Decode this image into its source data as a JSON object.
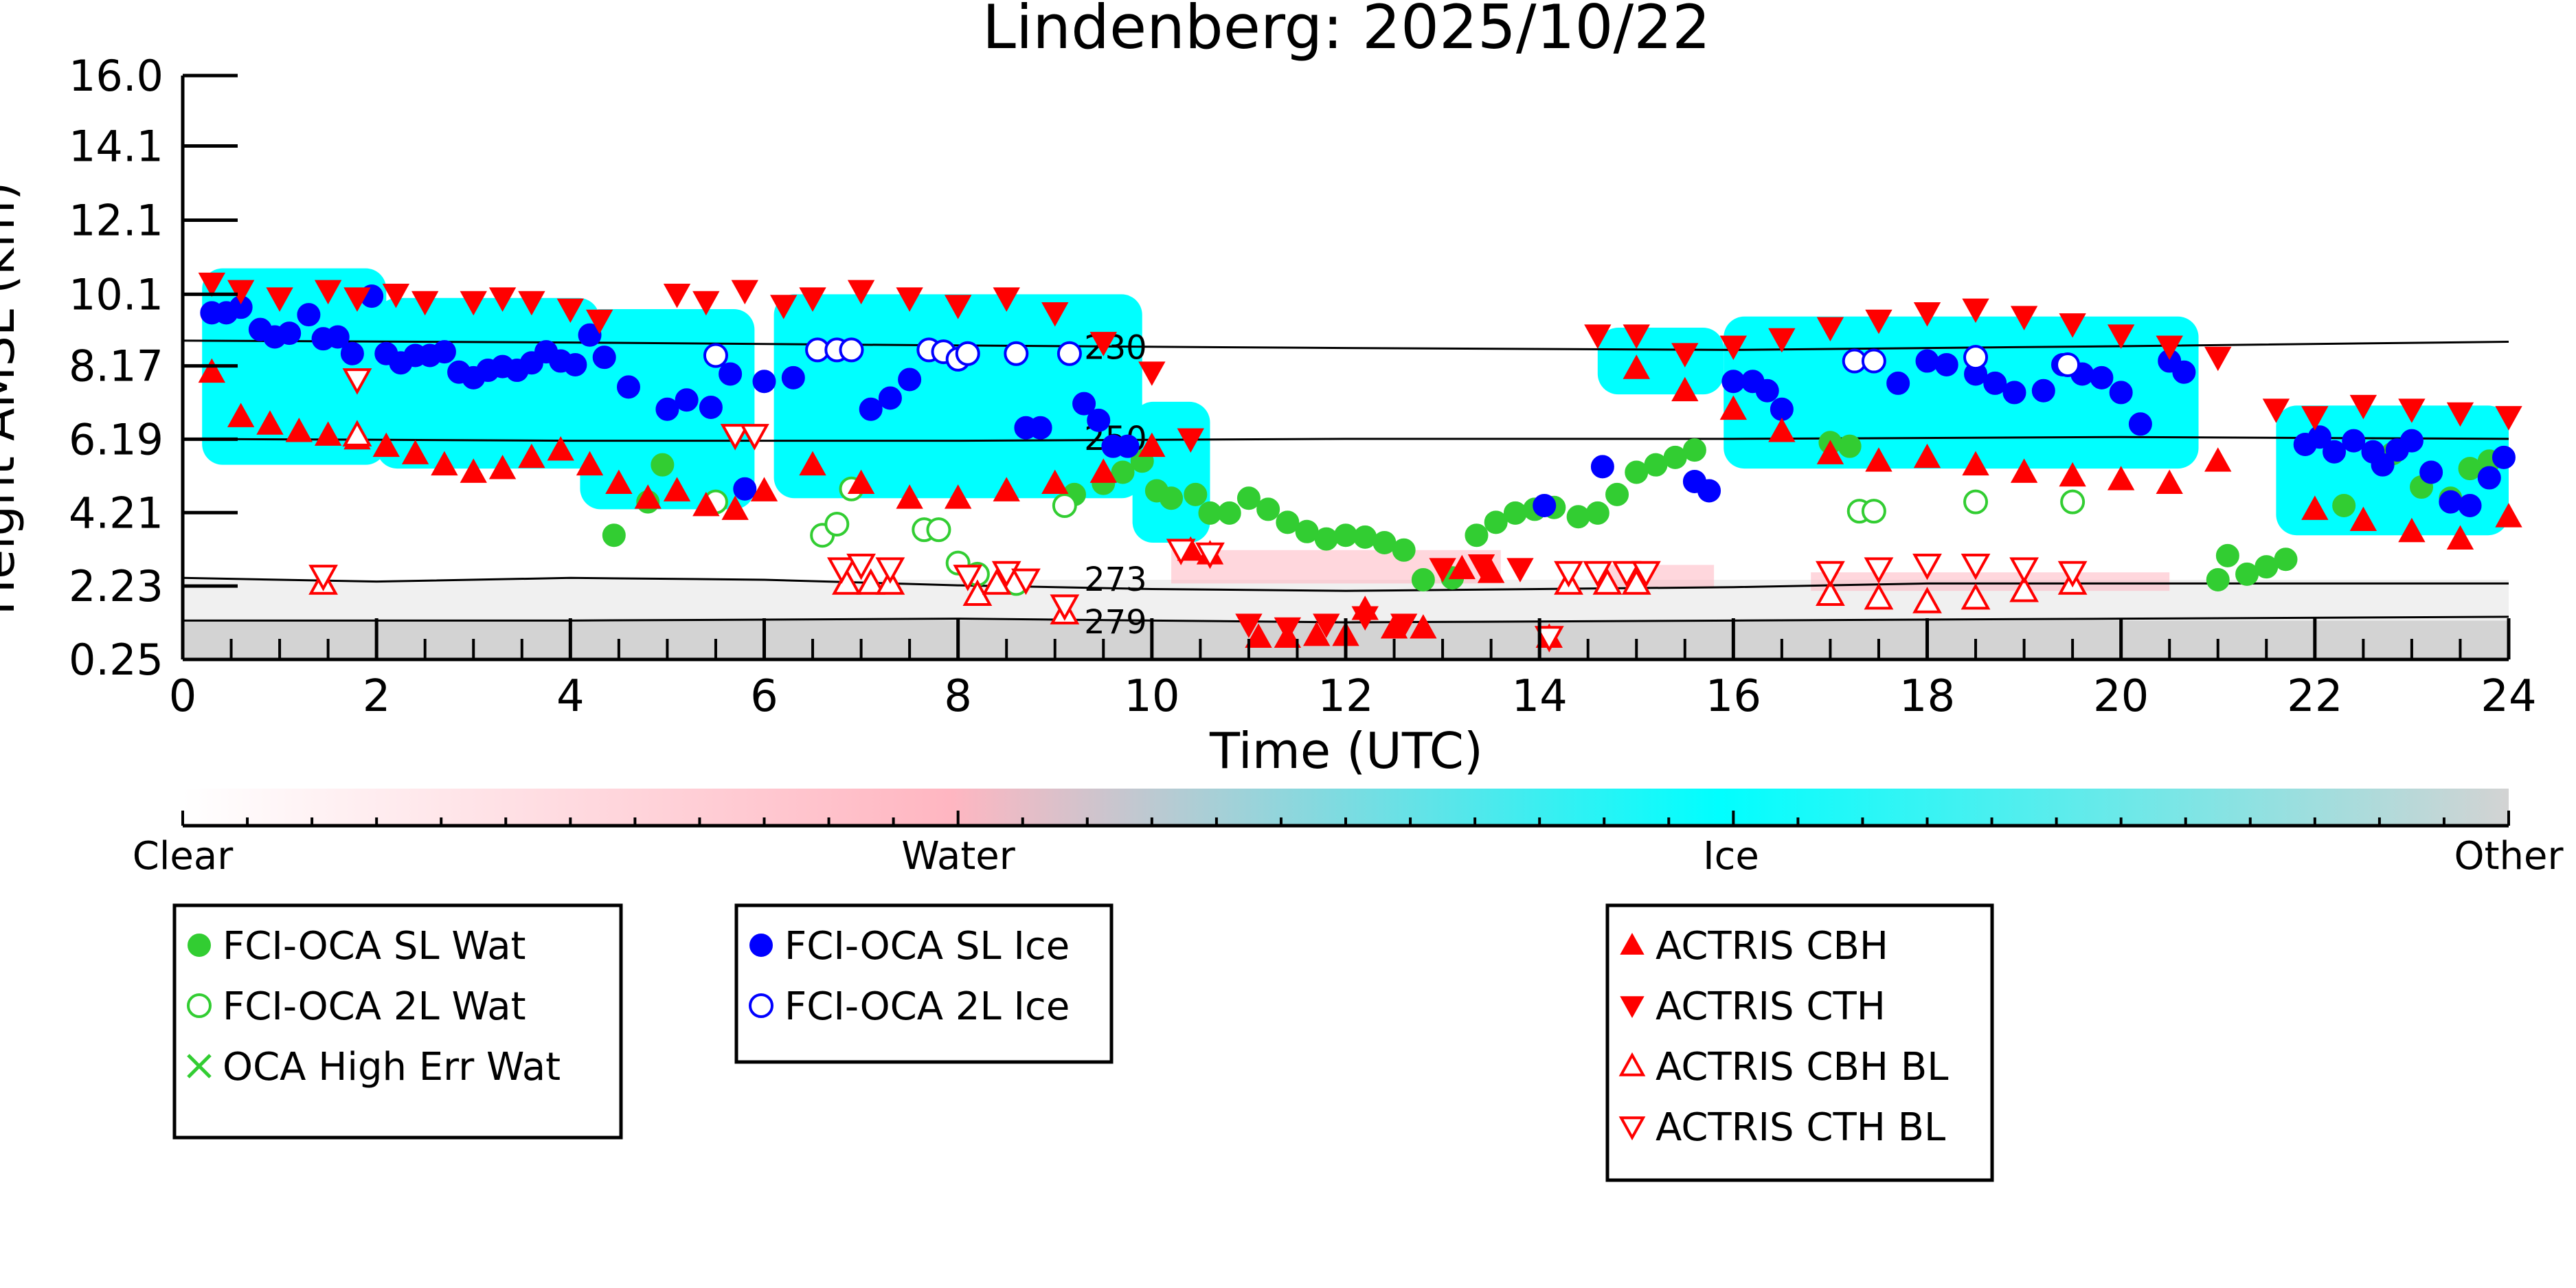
{
  "chart_data": {
    "type": "scatter",
    "title": "Lindenberg: 2025/10/22",
    "xlabel": "Time (UTC)",
    "ylabel": "Height AMSL (km)",
    "xlim": [
      0,
      24
    ],
    "ylim": [
      0.25,
      16.0
    ],
    "x_ticks": [
      "0",
      "2",
      "4",
      "6",
      "8",
      "10",
      "12",
      "14",
      "16",
      "18",
      "20",
      "22",
      "24"
    ],
    "y_ticks": [
      "0.25",
      "2.23",
      "4.21",
      "6.19",
      "8.17",
      "10.1",
      "12.1",
      "14.1",
      "16.0"
    ],
    "grid": false,
    "colorbar": {
      "labels": [
        "Clear",
        "Water",
        "Ice",
        "Other"
      ],
      "colors": [
        "#ffffff",
        "#ffb6c1",
        "#00ffff",
        "#d3d3d3"
      ]
    },
    "isotherms": [
      {
        "label": "230",
        "points": [
          [
            0,
            8.85
          ],
          [
            4,
            8.8
          ],
          [
            8,
            8.72
          ],
          [
            12,
            8.65
          ],
          [
            16,
            8.6
          ],
          [
            20,
            8.7
          ],
          [
            24,
            8.82
          ]
        ]
      },
      {
        "label": "250",
        "points": [
          [
            0,
            6.2
          ],
          [
            4,
            6.15
          ],
          [
            8,
            6.15
          ],
          [
            12,
            6.2
          ],
          [
            16,
            6.2
          ],
          [
            20,
            6.25
          ],
          [
            24,
            6.2
          ]
        ]
      },
      {
        "label": "273",
        "points": [
          [
            0,
            2.45
          ],
          [
            2,
            2.35
          ],
          [
            4,
            2.45
          ],
          [
            6,
            2.4
          ],
          [
            8,
            2.25
          ],
          [
            10,
            2.15
          ],
          [
            12,
            2.1
          ],
          [
            14,
            2.15
          ],
          [
            16,
            2.2
          ],
          [
            18,
            2.3
          ],
          [
            20,
            2.3
          ],
          [
            24,
            2.3
          ]
        ]
      },
      {
        "label": "279",
        "points": [
          [
            0,
            1.3
          ],
          [
            4,
            1.3
          ],
          [
            8,
            1.35
          ],
          [
            12,
            1.25
          ],
          [
            16,
            1.3
          ],
          [
            20,
            1.35
          ],
          [
            24,
            1.4
          ]
        ]
      }
    ],
    "legends": [
      {
        "entries": [
          {
            "label": "FCI-OCA SL Wat",
            "marker": "circle",
            "color": "#32cd32",
            "filled": true
          },
          {
            "label": "FCI-OCA 2L Wat",
            "marker": "circle",
            "color": "#32cd32",
            "filled": false
          },
          {
            "label": "OCA High Err Wat",
            "marker": "x",
            "color": "#32cd32",
            "filled": false
          }
        ]
      },
      {
        "entries": [
          {
            "label": "FCI-OCA SL Ice",
            "marker": "circle",
            "color": "#0000ff",
            "filled": true
          },
          {
            "label": "FCI-OCA 2L Ice",
            "marker": "circle",
            "color": "#0000ff",
            "filled": false
          }
        ]
      },
      {
        "entries": [
          {
            "label": "ACTRIS CBH",
            "marker": "triangle-up",
            "color": "#ff0000",
            "filled": true
          },
          {
            "label": "ACTRIS CTH",
            "marker": "triangle-down",
            "color": "#ff0000",
            "filled": true
          },
          {
            "label": "ACTRIS CBH BL",
            "marker": "triangle-up",
            "color": "#ff0000",
            "filled": false
          },
          {
            "label": "ACTRIS CTH BL",
            "marker": "triangle-down",
            "color": "#ff0000",
            "filled": false
          }
        ]
      }
    ],
    "series": [
      {
        "name": "FCI-OCA SL Wat",
        "marker": "circle",
        "color": "#32cd32",
        "filled": true,
        "x": [
          4.45,
          4.8,
          4.95,
          9.2,
          9.5,
          9.7,
          9.9,
          10.05,
          10.2,
          10.45,
          10.6,
          10.8,
          11.0,
          11.2,
          11.4,
          11.6,
          11.8,
          12.0,
          12.2,
          12.4,
          12.6,
          12.8,
          13.1,
          13.35,
          13.55,
          13.75,
          13.95,
          14.15,
          14.4,
          14.6,
          14.8,
          15.0,
          15.2,
          15.4,
          15.6,
          17.0,
          17.2,
          21.0,
          21.1,
          21.3,
          21.5,
          21.7,
          22.3,
          22.8,
          23.1,
          23.4,
          23.6,
          23.8
        ],
        "y": [
          3.6,
          4.5,
          5.5,
          4.7,
          5.0,
          5.3,
          5.6,
          4.8,
          4.6,
          4.7,
          4.2,
          4.2,
          4.6,
          4.3,
          3.95,
          3.7,
          3.5,
          3.6,
          3.55,
          3.4,
          3.2,
          2.4,
          2.45,
          3.6,
          3.95,
          4.2,
          4.3,
          4.35,
          4.1,
          4.2,
          4.7,
          5.3,
          5.5,
          5.7,
          5.9,
          6.1,
          6.0,
          2.4,
          3.05,
          2.55,
          2.75,
          2.95,
          4.4,
          5.8,
          4.9,
          4.6,
          5.4,
          5.6
        ]
      },
      {
        "name": "FCI-OCA 2L Wat",
        "marker": "circle",
        "color": "#32cd32",
        "filled": false,
        "x": [
          5.5,
          6.6,
          6.75,
          6.9,
          7.65,
          7.8,
          8.0,
          8.2,
          8.6,
          9.1,
          17.3,
          17.45,
          18.5,
          19.5
        ],
        "y": [
          4.5,
          3.6,
          3.9,
          4.85,
          3.75,
          3.75,
          2.85,
          2.55,
          2.3,
          4.4,
          4.25,
          4.25,
          4.5,
          4.5
        ]
      },
      {
        "name": "FCI-OCA SL Ice",
        "marker": "circle",
        "color": "#0000ff",
        "filled": true,
        "x": [
          0.3,
          0.45,
          0.6,
          0.8,
          0.95,
          1.1,
          1.3,
          1.45,
          1.6,
          1.75,
          1.95,
          2.1,
          2.25,
          2.4,
          2.55,
          2.7,
          2.85,
          3.0,
          3.15,
          3.3,
          3.45,
          3.6,
          3.75,
          3.9,
          4.05,
          4.2,
          4.35,
          4.6,
          5.0,
          5.2,
          5.45,
          5.65,
          5.8,
          6.0,
          6.3,
          7.1,
          7.3,
          7.5,
          8.7,
          8.85,
          9.3,
          9.45,
          9.6,
          9.75,
          14.05,
          14.65,
          15.6,
          15.75,
          16.0,
          16.2,
          16.35,
          16.5,
          17.7,
          18.0,
          18.2,
          18.5,
          18.7,
          18.9,
          19.2,
          19.4,
          19.6,
          19.8,
          20.0,
          20.2,
          20.5,
          20.65,
          21.9,
          22.05,
          22.2,
          22.4,
          22.6,
          22.7,
          22.85,
          23.0,
          23.2,
          23.4,
          23.6,
          23.8,
          23.95
        ],
        "y": [
          9.6,
          9.6,
          9.75,
          9.15,
          8.95,
          9.05,
          9.55,
          8.9,
          8.95,
          8.5,
          10.05,
          8.5,
          8.25,
          8.45,
          8.45,
          8.55,
          8.0,
          7.85,
          8.05,
          8.15,
          8.05,
          8.25,
          8.55,
          8.3,
          8.2,
          9.0,
          8.4,
          7.6,
          7.0,
          7.25,
          7.05,
          7.95,
          4.85,
          7.75,
          7.85,
          7.0,
          7.3,
          7.8,
          6.5,
          6.5,
          7.15,
          6.7,
          6.0,
          6.0,
          4.4,
          5.45,
          5.05,
          4.8,
          7.75,
          7.75,
          7.5,
          7.0,
          7.7,
          8.3,
          8.2,
          7.95,
          7.7,
          7.45,
          7.5,
          8.2,
          7.95,
          7.85,
          7.45,
          6.6,
          8.3,
          8.0,
          6.05,
          6.25,
          5.85,
          6.15,
          5.85,
          5.5,
          5.9,
          6.15,
          5.3,
          4.5,
          4.4,
          5.15,
          5.7
        ]
      },
      {
        "name": "FCI-OCA 2L Ice",
        "marker": "circle",
        "color": "#0000ff",
        "filled": false,
        "x": [
          5.5,
          6.55,
          6.75,
          6.9,
          7.7,
          7.85,
          8.0,
          8.1,
          8.6,
          9.15,
          17.25,
          17.45,
          18.5,
          19.45
        ],
        "y": [
          8.45,
          8.6,
          8.6,
          8.6,
          8.6,
          8.55,
          8.35,
          8.5,
          8.5,
          8.5,
          8.3,
          8.3,
          8.4,
          8.2
        ]
      },
      {
        "name": "ACTRIS CBH",
        "marker": "triangle-up",
        "color": "#ff0000",
        "filled": true,
        "x": [
          0.3,
          0.6,
          0.9,
          1.2,
          1.5,
          1.8,
          2.1,
          2.4,
          2.7,
          3.0,
          3.3,
          3.6,
          3.9,
          4.2,
          4.5,
          4.8,
          5.1,
          5.4,
          5.7,
          6.0,
          6.5,
          7.0,
          7.5,
          8.0,
          8.5,
          9.0,
          9.5,
          10.0,
          10.4,
          10.6,
          11.1,
          11.4,
          11.7,
          12.0,
          12.2,
          12.5,
          12.8,
          13.2,
          13.5,
          14.1,
          15.0,
          15.5,
          16.0,
          16.5,
          17.0,
          17.5,
          18.0,
          18.5,
          19.0,
          19.5,
          20.0,
          20.5,
          21.0,
          22.0,
          22.5,
          23.0,
          23.5,
          24.0
        ],
        "y": [
          8.0,
          6.8,
          6.6,
          6.4,
          6.3,
          6.2,
          6.0,
          5.8,
          5.5,
          5.3,
          5.4,
          5.7,
          5.9,
          5.5,
          5.0,
          4.6,
          4.8,
          4.4,
          4.3,
          4.8,
          5.5,
          5.0,
          4.6,
          4.6,
          4.8,
          5.0,
          5.3,
          6.0,
          3.2,
          3.1,
          0.85,
          0.85,
          0.9,
          0.9,
          1.6,
          1.1,
          1.1,
          2.7,
          2.6,
          0.85,
          8.1,
          7.5,
          7.0,
          6.4,
          5.8,
          5.6,
          5.7,
          5.5,
          5.3,
          5.2,
          5.1,
          5.0,
          5.6,
          4.3,
          4.0,
          3.7,
          3.5,
          4.1
        ]
      },
      {
        "name": "ACTRIS CTH",
        "marker": "triangle-down",
        "color": "#ff0000",
        "filled": true,
        "x": [
          0.3,
          0.6,
          1.0,
          1.5,
          1.8,
          2.2,
          2.5,
          3.0,
          3.3,
          3.6,
          4.0,
          4.3,
          5.1,
          5.4,
          5.8,
          6.2,
          6.5,
          7.0,
          7.5,
          8.0,
          8.5,
          9.0,
          9.5,
          10.0,
          10.4,
          11.0,
          11.4,
          11.8,
          12.2,
          12.6,
          13.0,
          13.4,
          13.8,
          14.6,
          15.0,
          15.5,
          16.0,
          16.5,
          17.0,
          17.5,
          18.0,
          18.5,
          19.0,
          19.5,
          20.0,
          20.5,
          21.0,
          21.6,
          22.0,
          22.5,
          23.0,
          23.5,
          24.0
        ],
        "y": [
          10.4,
          10.2,
          10.0,
          10.2,
          10.0,
          10.1,
          9.9,
          9.9,
          10.0,
          9.9,
          9.7,
          9.4,
          10.1,
          9.9,
          10.2,
          9.8,
          10.0,
          10.2,
          10.0,
          9.8,
          10.0,
          9.6,
          8.8,
          8.0,
          6.2,
          1.2,
          1.1,
          1.2,
          1.4,
          1.2,
          2.7,
          2.8,
          2.7,
          9.0,
          9.0,
          8.5,
          8.7,
          8.9,
          9.2,
          9.4,
          9.6,
          9.7,
          9.5,
          9.3,
          9.0,
          8.7,
          8.4,
          7.0,
          6.8,
          7.1,
          7.0,
          6.9,
          6.8
        ]
      },
      {
        "name": "ACTRIS CBH BL",
        "marker": "triangle-up",
        "color": "#ff0000",
        "filled": false,
        "x": [
          1.45,
          1.8,
          6.85,
          7.1,
          7.3,
          8.2,
          8.4,
          9.1,
          14.3,
          14.7,
          15.0,
          17.0,
          17.5,
          18.0,
          18.5,
          19.0,
          19.5
        ],
        "y": [
          2.3,
          6.3,
          2.3,
          2.3,
          2.3,
          2.0,
          2.3,
          1.5,
          2.3,
          2.3,
          2.3,
          2.0,
          1.9,
          1.8,
          1.9,
          2.1,
          2.3
        ]
      },
      {
        "name": "ACTRIS CTH BL",
        "marker": "triangle-down",
        "color": "#ff0000",
        "filled": false,
        "x": [
          1.45,
          1.8,
          5.7,
          5.9,
          6.8,
          7.0,
          7.3,
          8.1,
          8.5,
          8.7,
          9.1,
          10.3,
          10.6,
          14.1,
          14.3,
          14.6,
          14.9,
          15.1,
          17.0,
          17.5,
          18.0,
          18.5,
          19.0,
          19.5
        ],
        "y": [
          2.5,
          7.8,
          6.3,
          6.3,
          2.7,
          2.8,
          2.7,
          2.5,
          2.6,
          2.4,
          1.7,
          3.2,
          3.1,
          0.85,
          2.6,
          2.6,
          2.6,
          2.6,
          2.6,
          2.7,
          2.8,
          2.8,
          2.7,
          2.6
        ]
      }
    ]
  }
}
